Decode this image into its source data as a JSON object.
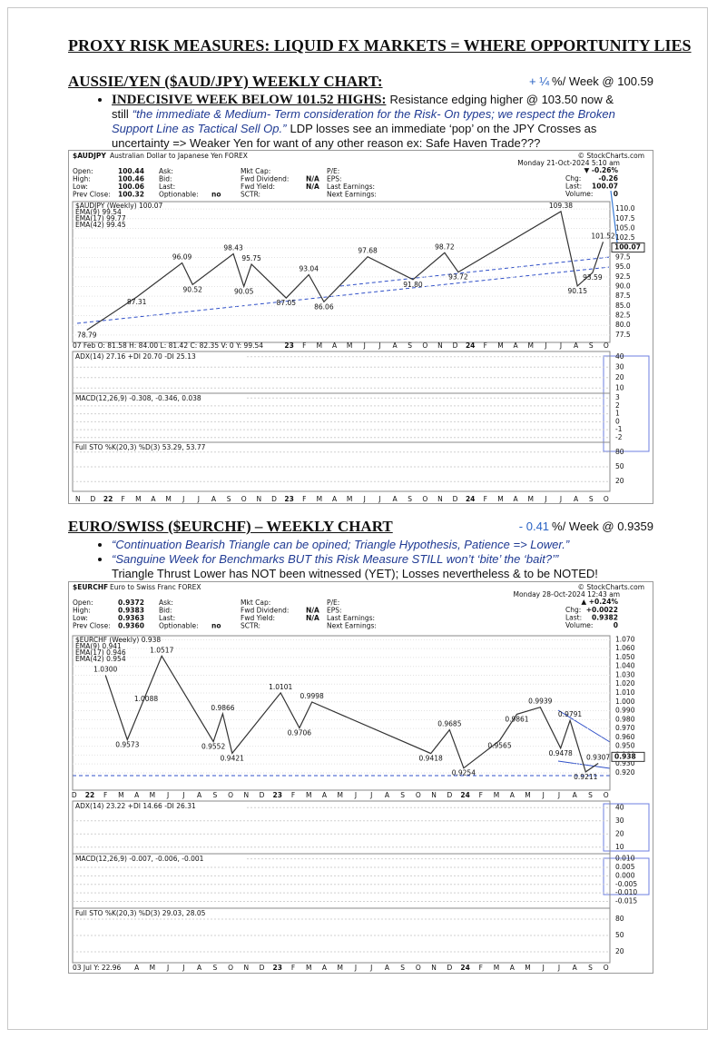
{
  "header": {
    "title": "PROXY RISK MEASURES: LIQUID FX MARKETS = WHERE OPPORTUNITY LIES"
  },
  "sections": [
    {
      "heading": "AUSSIE/YEN ($AUD/JPY) WEEKLY CHART:",
      "change": [
        {
          "text": "+ ¼",
          "style": "blue"
        },
        {
          "text": "%/ Week @ 100.59",
          "style": "plain"
        }
      ],
      "bullets": [
        [
          {
            "text": "INDECISIVE WEEK BELOW 101.52 HIGHS:",
            "style": "bold-underline"
          },
          {
            "text": "Resistance edging higher @ 103.50 now & still",
            "style": "plain"
          },
          {
            "text": "“the immediate & Medium- Term consideration for the Risk- On types; we respect the Broken Support Line as Tactical Sell Op.”",
            "style": "italic-blue"
          },
          {
            "text": "LDP losses see an immediate ‘pop’ on the JPY Crosses as uncertainty => Weaker Yen for want of any other reason ex: Safe Haven Trade???",
            "style": "plain"
          }
        ]
      ]
    },
    {
      "heading": "EURO/SWISS ($EURCHF) – WEEKLY CHART",
      "change": [
        {
          "text": "- 0.41",
          "style": "blue"
        },
        {
          "text": "%/ Week @ 0.9359",
          "style": "plain"
        }
      ],
      "bullets": [
        [
          {
            "text": "“Continuation Bearish Triangle can be opined; Triangle Hypothesis, Patience => Lower.”",
            "style": "italic-blue"
          }
        ],
        [
          {
            "text": "“Sanguine Week for Benchmarks BUT this Risk Measure STILL won’t ‘bite’ the ‘bait?’”",
            "style": "italic-blue"
          },
          {
            "text": "Triangle Thrust Lower has NOT been witnessed (YET); Losses nevertheless & to be NOTED!",
            "style": "plain-block"
          }
        ]
      ]
    }
  ],
  "chart_data": [
    {
      "type": "line",
      "symbol": "$AUDJPY",
      "name": "Australian Dollar to Japanese Yen FOREX",
      "copyright": "© StockCharts.com",
      "date": "Monday 21-Oct-2024 5:10 am",
      "change": "▼ -0.26%",
      "change_color": "#c00000",
      "info": [
        [
          [
            "Open:",
            "100.44"
          ],
          [
            "High:",
            "100.46"
          ],
          [
            "Low:",
            "100.06"
          ],
          [
            "Prev Close:",
            "100.32"
          ]
        ],
        [
          [
            "Ask:"
          ],
          [
            "Bid:"
          ],
          [
            "Last:"
          ],
          [
            "Optionable:",
            "no"
          ]
        ],
        [
          [
            "Mkt Cap:"
          ],
          [
            "Fwd Dividend:",
            "N/A"
          ],
          [
            "Fwd Yield:",
            "N/A"
          ],
          [
            "SCTR:"
          ]
        ],
        [
          [
            "P/E:"
          ],
          [
            "EPS:"
          ],
          [
            "Last Earnings:"
          ],
          [
            "Next Earnings:"
          ]
        ]
      ],
      "info_right": [
        [
          "Chg:",
          "-0.26"
        ],
        [
          "Last:",
          "100.07"
        ],
        [
          "Volume:",
          "0"
        ]
      ],
      "legend": [
        {
          "name": "$AUDJPY (Weekly) 100.07",
          "color": "#000000"
        },
        {
          "name": "EMA(9) 99.54",
          "color": "#1f3fbf"
        },
        {
          "name": "EMA(17) 99.77",
          "color": "#d02020"
        },
        {
          "name": "EMA(42) 99.45",
          "color": "#1a8a1a"
        }
      ],
      "strip": "07 Feb O: 81.58 H: 84.00 L: 81.42 C: 82.35 V: 0 Y: 99.54",
      "color": "#333333",
      "grid": true,
      "xlim": [
        -0.35,
        35.25
      ],
      "xticks": [
        {
          "value": 0,
          "label": "N"
        },
        {
          "value": 1,
          "label": "D"
        },
        {
          "value": 2,
          "label": "22"
        },
        {
          "value": 3,
          "label": "F"
        },
        {
          "value": 4,
          "label": "M"
        },
        {
          "value": 5,
          "label": "A"
        },
        {
          "value": 6,
          "label": "M"
        },
        {
          "value": 7,
          "label": "J"
        },
        {
          "value": 8,
          "label": "J"
        },
        {
          "value": 9,
          "label": "A"
        },
        {
          "value": 10,
          "label": "S"
        },
        {
          "value": 11,
          "label": "O"
        },
        {
          "value": 12,
          "label": "N"
        },
        {
          "value": 13,
          "label": "D"
        },
        {
          "value": 14,
          "label": "23"
        },
        {
          "value": 15,
          "label": "F"
        },
        {
          "value": 16,
          "label": "M"
        },
        {
          "value": 17,
          "label": "A"
        },
        {
          "value": 18,
          "label": "M"
        },
        {
          "value": 19,
          "label": "J"
        },
        {
          "value": 20,
          "label": "J"
        },
        {
          "value": 21,
          "label": "A"
        },
        {
          "value": 22,
          "label": "S"
        },
        {
          "value": 23,
          "label": "O"
        },
        {
          "value": 24,
          "label": "N"
        },
        {
          "value": 25,
          "label": "D"
        },
        {
          "value": 26,
          "label": "24"
        },
        {
          "value": 27,
          "label": "F"
        },
        {
          "value": 28,
          "label": "M"
        },
        {
          "value": 29,
          "label": "A"
        },
        {
          "value": 30,
          "label": "M"
        },
        {
          "value": 31,
          "label": "J"
        },
        {
          "value": 32,
          "label": "J"
        },
        {
          "value": 33,
          "label": "A"
        },
        {
          "value": 34,
          "label": "S"
        },
        {
          "value": 35,
          "label": "O"
        }
      ],
      "ylim": [
        75.6,
        111.9
      ],
      "yticks": [
        {
          "value": 110,
          "label": "110.0"
        },
        107.5,
        {
          "value": 105,
          "label": "105.0"
        },
        102.5,
        {
          "value": 100,
          "label": "100.0"
        },
        97.5,
        {
          "value": 95,
          "label": "95.0"
        },
        92.5,
        {
          "value": 90,
          "label": "90.0"
        },
        87.5,
        {
          "value": 85,
          "label": "85.0"
        },
        82.5,
        {
          "value": 80,
          "label": "80.0"
        },
        77.5
      ],
      "swings": {
        "x": [
          0.6,
          3.9,
          6.9,
          7.6,
          10.3,
          11.0,
          11.5,
          13.8,
          15.3,
          16.3,
          19.2,
          22.2,
          24.3,
          25.2,
          32.0,
          33.1,
          34.1,
          34.8
        ],
        "values": [
          78.79,
          87.31,
          96.09,
          90.52,
          98.43,
          90.05,
          95.75,
          87.05,
          93.04,
          86.06,
          97.68,
          91.8,
          98.72,
          93.72,
          109.38,
          90.15,
          93.59,
          101.52
        ],
        "value_labels": [
          "78.79",
          "87.31",
          "96.09",
          "90.52",
          "98.43",
          "90.05",
          "95.75",
          "87.05",
          "93.04",
          "86.06",
          "97.68",
          "91.80",
          "98.72",
          "93.72",
          "109.38",
          "90.15",
          "93.59",
          "101.52"
        ]
      },
      "last": {
        "value": 100.07,
        "label": "100.07"
      },
      "panels": [
        {
          "legend": "ADX(14) 27.16 +DI 20.70 -DI 25.13",
          "ylim": [
            5,
            45
          ],
          "yticks": [
            40,
            30,
            20,
            10
          ]
        },
        {
          "legend": "MACD(12,26,9) -0.308, -0.346, 0.038",
          "ylim": [
            -2.6,
            3.6
          ],
          "yticks": [
            3,
            2,
            1,
            0,
            -1,
            -2
          ]
        },
        {
          "legend": "Full STO %K(20,3) %D(3) 53.29, 53.77",
          "ylim": [
            0,
            100
          ],
          "yticks": [
            80,
            50,
            20
          ]
        }
      ]
    },
    {
      "type": "line",
      "symbol": "$EURCHF",
      "name": "Euro to Swiss Franc FOREX",
      "copyright": "© StockCharts.com",
      "date": "Monday 28-Oct-2024 12:43 am",
      "change": "▲ +0.24%",
      "change_color": "#1a8a1a",
      "info": [
        [
          [
            "Open:",
            "0.9372"
          ],
          [
            "High:",
            "0.9383"
          ],
          [
            "Low:",
            "0.9363"
          ],
          [
            "Prev Close:",
            "0.9360"
          ]
        ],
        [
          [
            "Ask:"
          ],
          [
            "Bid:"
          ],
          [
            "Last:"
          ],
          [
            "Optionable:",
            "no"
          ]
        ],
        [
          [
            "Mkt Cap:"
          ],
          [
            "Fwd Dividend:",
            "N/A"
          ],
          [
            "Fwd Yield:",
            "N/A"
          ],
          [
            "SCTR:"
          ]
        ],
        [
          [
            "P/E:"
          ],
          [
            "EPS:"
          ],
          [
            "Last Earnings:"
          ],
          [
            "Next Earnings:"
          ]
        ]
      ],
      "info_right": [
        [
          "Chg:",
          "+0.0022"
        ],
        [
          "Last:",
          "0.9382"
        ],
        [
          "Volume:",
          "0"
        ]
      ],
      "legend": [
        {
          "name": "$EURCHF (Weekly) 0.938",
          "color": "#000000"
        },
        {
          "name": "EMA(9) 0.941",
          "color": "#1f3fbf"
        },
        {
          "name": "EMA(17) 0.946",
          "color": "#d02020"
        },
        {
          "name": "EMA(42) 0.954",
          "color": "#1a8a1a"
        }
      ],
      "strip": "03 Jul Y: 22.96",
      "color": "#333333",
      "grid": true,
      "xlim": [
        -0.1,
        34.25
      ],
      "xticks": [
        {
          "value": 0,
          "label": "D"
        },
        {
          "value": 1,
          "label": "22"
        },
        {
          "value": 2,
          "label": "F"
        },
        {
          "value": 3,
          "label": "M"
        },
        {
          "value": 4,
          "label": "A"
        },
        {
          "value": 5,
          "label": "M"
        },
        {
          "value": 6,
          "label": "J"
        },
        {
          "value": 7,
          "label": "J"
        },
        {
          "value": 8,
          "label": "A"
        },
        {
          "value": 9,
          "label": "S"
        },
        {
          "value": 10,
          "label": "O"
        },
        {
          "value": 11,
          "label": "N"
        },
        {
          "value": 12,
          "label": "D"
        },
        {
          "value": 13,
          "label": "23"
        },
        {
          "value": 14,
          "label": "F"
        },
        {
          "value": 15,
          "label": "M"
        },
        {
          "value": 16,
          "label": "A"
        },
        {
          "value": 17,
          "label": "M"
        },
        {
          "value": 18,
          "label": "J"
        },
        {
          "value": 19,
          "label": "J"
        },
        {
          "value": 20,
          "label": "A"
        },
        {
          "value": 21,
          "label": "S"
        },
        {
          "value": 22,
          "label": "O"
        },
        {
          "value": 23,
          "label": "N"
        },
        {
          "value": 24,
          "label": "D"
        },
        {
          "value": 25,
          "label": "24"
        },
        {
          "value": 26,
          "label": "F"
        },
        {
          "value": 27,
          "label": "M"
        },
        {
          "value": 28,
          "label": "A"
        },
        {
          "value": 29,
          "label": "M"
        },
        {
          "value": 30,
          "label": "J"
        },
        {
          "value": 31,
          "label": "J"
        },
        {
          "value": 32,
          "label": "A"
        },
        {
          "value": 33,
          "label": "S"
        },
        {
          "value": 34,
          "label": "O"
        }
      ],
      "ylim": [
        0.9005,
        1.0745
      ],
      "yticks": [
        {
          "value": 1.07,
          "label": "1.070"
        },
        {
          "value": 1.06,
          "label": "1.060"
        },
        {
          "value": 1.05,
          "label": "1.050"
        },
        {
          "value": 1.04,
          "label": "1.040"
        },
        {
          "value": 1.03,
          "label": "1.030"
        },
        {
          "value": 1.02,
          "label": "1.020"
        },
        {
          "value": 1.01,
          "label": "1.010"
        },
        {
          "value": 1,
          "label": "1.000"
        },
        {
          "value": 0.99,
          "label": "0.990"
        },
        {
          "value": 0.98,
          "label": "0.980"
        },
        {
          "value": 0.97,
          "label": "0.970"
        },
        {
          "value": 0.96,
          "label": "0.960"
        },
        {
          "value": 0.95,
          "label": "0.950"
        },
        {
          "value": 0.94,
          "label": "0.940"
        },
        {
          "value": 0.93,
          "label": "0.930"
        },
        {
          "value": 0.92,
          "label": "0.920"
        }
      ],
      "swings": {
        "x": [
          2.0,
          3.4,
          4.6,
          5.6,
          8.9,
          9.5,
          10.1,
          13.2,
          14.4,
          15.2,
          22.8,
          24.0,
          24.9,
          27.2,
          28.3,
          29.8,
          31.1,
          31.7,
          32.7,
          33.5
        ],
        "values": [
          1.03,
          0.9573,
          1.0088,
          1.0517,
          0.9552,
          0.9866,
          0.9421,
          1.0101,
          0.9706,
          0.9998,
          0.9418,
          0.9685,
          0.9254,
          0.9565,
          0.9861,
          0.9939,
          0.9478,
          0.9791,
          0.9211,
          0.9307
        ],
        "value_labels": [
          "1.0300",
          "0.9573",
          "1.0088",
          "1.0517",
          "0.9552",
          "0.9866",
          "0.9421",
          "1.0101",
          "0.9706",
          "0.9998",
          "0.9418",
          "0.9685",
          "0.9254",
          "0.9565",
          "0.9861",
          "0.9939",
          "0.9478",
          "0.9791",
          "0.9211",
          "0.9307"
        ]
      },
      "last": {
        "value": 0.938,
        "label": "0.938"
      },
      "panels": [
        {
          "legend": "ADX(14) 23.22 +DI 14.66 -DI 26.31",
          "ylim": [
            5,
            45
          ],
          "yticks": [
            40,
            30,
            20,
            10
          ]
        },
        {
          "legend": "MACD(12,26,9) -0.007, -0.006, -0.001",
          "ylim": [
            -0.019,
            0.013
          ],
          "yticks": [
            {
              "value": 0.01,
              "label": "0.010"
            },
            0.005,
            {
              "value": 0,
              "label": "0.000"
            },
            -0.005,
            {
              "value": -0.01,
              "label": "-0.010"
            },
            -0.015
          ]
        },
        {
          "legend": "Full STO %K(20,3) %D(3) 29.03, 28.05",
          "ylim": [
            0,
            100
          ],
          "yticks": [
            80,
            50,
            20
          ]
        }
      ]
    }
  ]
}
